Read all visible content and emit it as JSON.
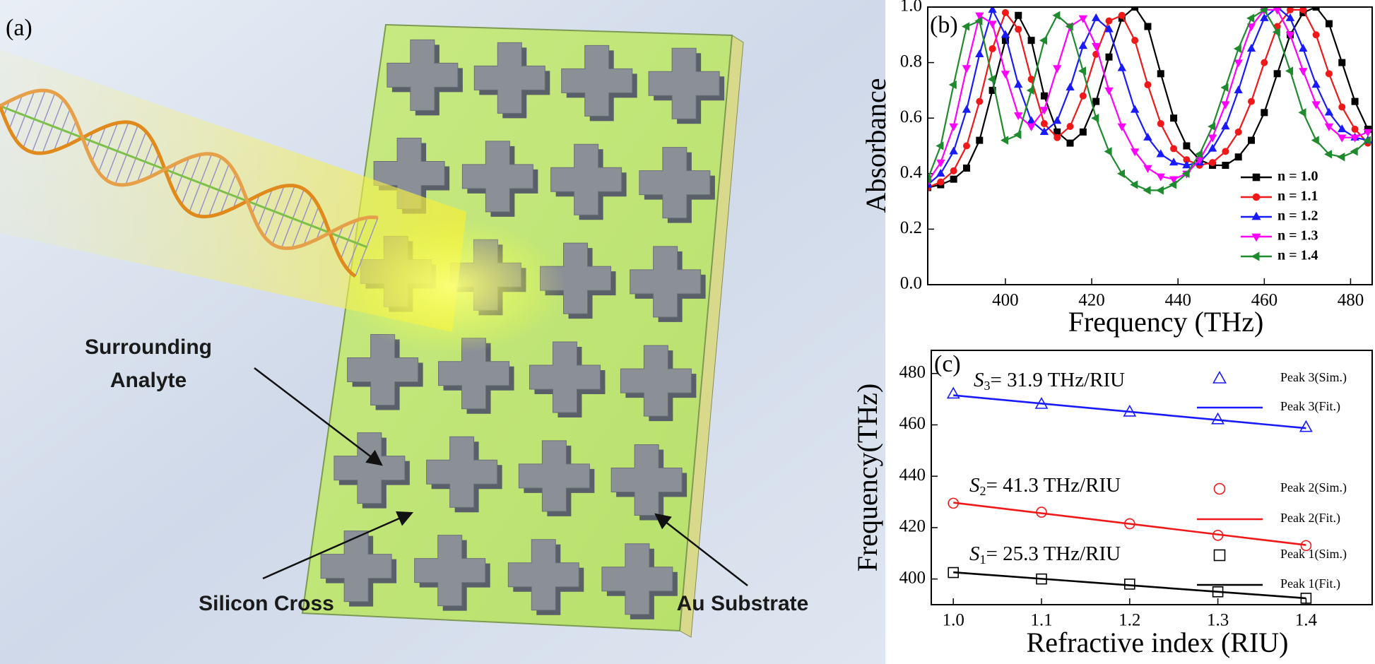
{
  "illustration": {
    "panel_label": "(a)",
    "labels": [
      "Surrounding",
      "Analyte",
      "Silicon Cross",
      "Au Substrate"
    ]
  },
  "chart_data": [
    {
      "type": "line",
      "panel_label": "(b)",
      "x_label": "Frequency (THz)",
      "y_label": "Absorbance",
      "xlim": [
        382,
        485
      ],
      "ylim": [
        0,
        1
      ],
      "xticks": [
        400,
        420,
        440,
        460,
        480
      ],
      "yticks": [
        {
          "value": 0,
          "label": "0.0"
        },
        0.2,
        0.4,
        0.6,
        0.8,
        {
          "value": 1,
          "label": "1.0"
        }
      ],
      "legend": "lower right",
      "filled_markers": true,
      "x": [
        382,
        385,
        388,
        391,
        394,
        397,
        400,
        403,
        406,
        409,
        412,
        415,
        418,
        421,
        424,
        427,
        430,
        433,
        436,
        439,
        442,
        445,
        448,
        451,
        454,
        457,
        460,
        463,
        466,
        469,
        472,
        475,
        478,
        481,
        484
      ],
      "series": [
        {
          "name": "n = 1.0",
          "color": "#000000",
          "marker": "square",
          "values": [
            0.35,
            0.36,
            0.38,
            0.42,
            0.52,
            0.7,
            0.88,
            0.97,
            0.88,
            0.68,
            0.55,
            0.51,
            0.55,
            0.66,
            0.82,
            0.96,
            1.0,
            0.93,
            0.76,
            0.6,
            0.5,
            0.45,
            0.43,
            0.43,
            0.46,
            0.52,
            0.62,
            0.76,
            0.9,
            0.98,
            1.0,
            0.94,
            0.8,
            0.66,
            0.56
          ]
        },
        {
          "name": "n = 1.1",
          "color": "#f01818",
          "marker": "circle",
          "values": [
            0.35,
            0.37,
            0.41,
            0.5,
            0.66,
            0.85,
            0.98,
            0.92,
            0.74,
            0.58,
            0.53,
            0.57,
            0.68,
            0.83,
            0.95,
            0.97,
            0.88,
            0.72,
            0.58,
            0.49,
            0.45,
            0.43,
            0.44,
            0.48,
            0.55,
            0.66,
            0.8,
            0.93,
            0.99,
            0.99,
            0.9,
            0.76,
            0.64,
            0.56,
            0.51
          ]
        },
        {
          "name": "n = 1.2",
          "color": "#1a1aff",
          "marker": "triangle",
          "values": [
            0.36,
            0.4,
            0.48,
            0.63,
            0.83,
            0.99,
            0.9,
            0.72,
            0.59,
            0.55,
            0.59,
            0.71,
            0.86,
            0.96,
            0.92,
            0.78,
            0.63,
            0.53,
            0.47,
            0.44,
            0.43,
            0.44,
            0.49,
            0.57,
            0.7,
            0.85,
            0.96,
            1.0,
            0.96,
            0.85,
            0.72,
            0.62,
            0.56,
            0.53,
            0.52
          ]
        },
        {
          "name": "n = 1.3",
          "color": "#ff00ff",
          "marker": "triangle-down",
          "values": [
            0.37,
            0.44,
            0.57,
            0.78,
            0.97,
            0.94,
            0.76,
            0.61,
            0.57,
            0.63,
            0.78,
            0.93,
            0.96,
            0.86,
            0.7,
            0.57,
            0.48,
            0.42,
            0.39,
            0.38,
            0.4,
            0.45,
            0.53,
            0.65,
            0.8,
            0.93,
            0.99,
            0.99,
            0.9,
            0.77,
            0.65,
            0.57,
            0.53,
            0.53,
            0.55
          ]
        },
        {
          "name": "n = 1.4",
          "color": "#1f8a2e",
          "marker": "triangle-left",
          "values": [
            0.38,
            0.5,
            0.72,
            0.93,
            0.95,
            0.74,
            0.52,
            0.54,
            0.7,
            0.88,
            0.97,
            0.93,
            0.77,
            0.6,
            0.48,
            0.4,
            0.36,
            0.34,
            0.34,
            0.36,
            0.4,
            0.47,
            0.57,
            0.71,
            0.85,
            0.96,
            0.99,
            0.91,
            0.77,
            0.62,
            0.52,
            0.47,
            0.46,
            0.48,
            0.52
          ]
        }
      ]
    },
    {
      "type": "scatter",
      "panel_label": "(c)",
      "x_label": "Refractive index (RIU)",
      "y_label": "Frequency(THz)",
      "xlim": [
        0.975,
        1.475
      ],
      "ylim": [
        390,
        489
      ],
      "xticks": [
        {
          "value": 1,
          "label": "1.0"
        },
        1.1,
        1.2,
        1.3,
        1.4
      ],
      "yticks": [
        400,
        420,
        440,
        460,
        480
      ],
      "legend": "right",
      "filled_markers": false,
      "series": [
        {
          "name": "Peak 3(Sim.)",
          "color": "#1a1aff",
          "marker": "triangle",
          "x": [
            1.0,
            1.1,
            1.2,
            1.3,
            1.4
          ],
          "values": [
            472,
            468,
            465,
            462,
            459
          ]
        },
        {
          "name": "Peak 3(Fit.)",
          "color": "#1a1aff",
          "line_style": "solid",
          "x": [
            1.0,
            1.4
          ],
          "values": [
            471.5,
            458.7
          ]
        },
        {
          "name": "Peak 2(Sim.)",
          "color": "#f01818",
          "marker": "circle",
          "x": [
            1.0,
            1.1,
            1.2,
            1.3,
            1.4
          ],
          "values": [
            429.5,
            426,
            421.5,
            417,
            413
          ]
        },
        {
          "name": "Peak 2(Fit.)",
          "color": "#f01818",
          "line_style": "solid",
          "x": [
            1.0,
            1.4
          ],
          "values": [
            429.7,
            413.2
          ]
        },
        {
          "name": "Peak 1(Sim.)",
          "color": "#000000",
          "marker": "square",
          "x": [
            1.0,
            1.1,
            1.2,
            1.3,
            1.4
          ],
          "values": [
            402.5,
            400,
            398,
            395,
            392.5
          ]
        },
        {
          "name": "Peak 1(Fit.)",
          "color": "#000000",
          "line_style": "solid",
          "x": [
            1.0,
            1.4
          ],
          "values": [
            402.6,
            392.5
          ]
        }
      ],
      "annotations": [
        {
          "symbol": "S",
          "subscript": "3",
          "text": "= 31.9 THz/RIU"
        },
        {
          "symbol": "S",
          "subscript": "2",
          "text": "= 41.3 THz/RIU"
        },
        {
          "symbol": "S",
          "subscript": "1",
          "text": "= 25.3 THz/RIU"
        }
      ]
    }
  ]
}
